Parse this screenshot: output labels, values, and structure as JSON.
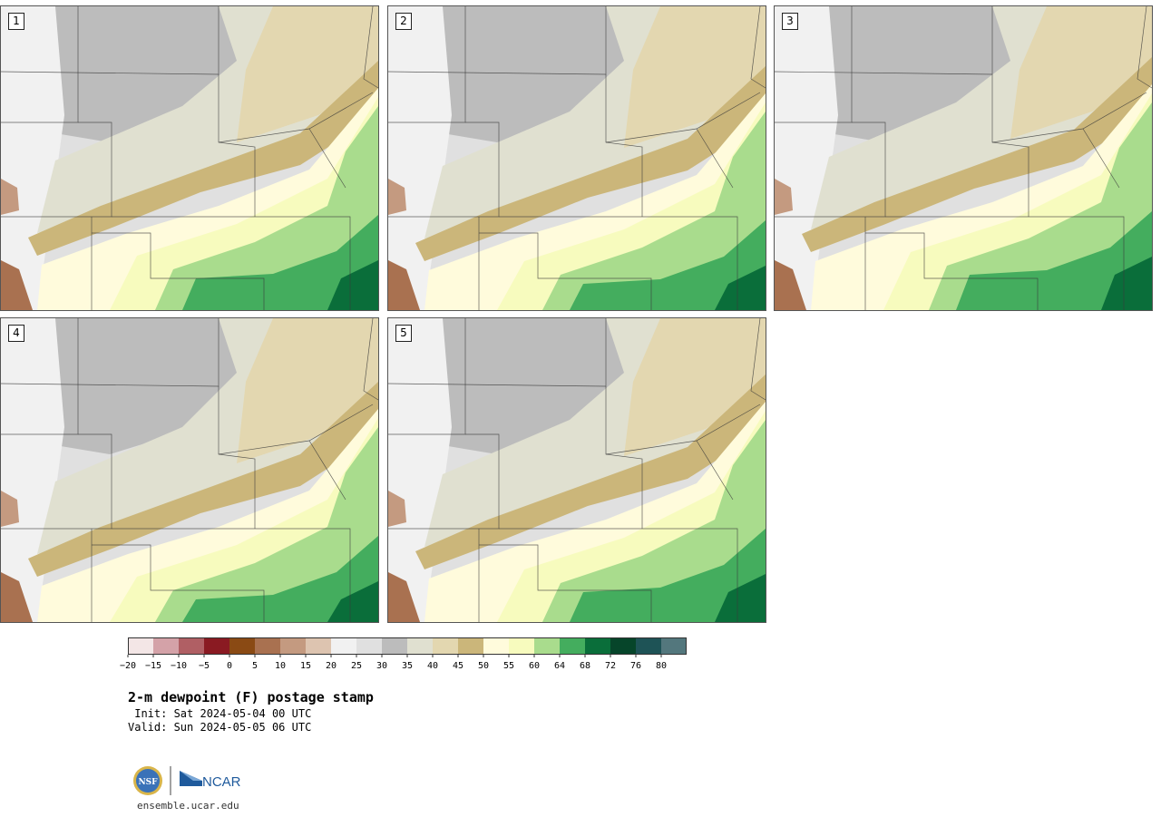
{
  "panels": [
    {
      "label": "1"
    },
    {
      "label": "2"
    },
    {
      "label": "3"
    },
    {
      "label": "4"
    },
    {
      "label": "5"
    }
  ],
  "colorbar": {
    "colors": [
      "#f3e6e6",
      "#d4a2a8",
      "#b05f64",
      "#8a1a22",
      "#8a4a14",
      "#a97150",
      "#c49a80",
      "#ddc4b0",
      "#f1f1f1",
      "#e0e0e0",
      "#bcbcbc",
      "#e0e0d0",
      "#e3d7b0",
      "#cbb67a",
      "#fffbdc",
      "#f7fbbe",
      "#a9dc8d",
      "#44ad5e",
      "#0a6e3a",
      "#06452a",
      "#1e5356",
      "#53777d"
    ],
    "tick_labels": [
      "−20",
      "−15",
      "−10",
      "−5",
      "0",
      "5",
      "10",
      "15",
      "20",
      "25",
      "30",
      "35",
      "40",
      "45",
      "50",
      "55",
      "60",
      "64",
      "68",
      "72",
      "76",
      "80"
    ]
  },
  "title": "2-m dewpoint (F) postage stamp",
  "init_text": " Init: Sat 2024-05-04 00 UTC",
  "valid_text": "Valid: Sun 2024-05-05 06 UTC",
  "logo_nsf": "NSF",
  "logo_ncar": "NCAR",
  "website": "ensemble.ucar.edu"
}
